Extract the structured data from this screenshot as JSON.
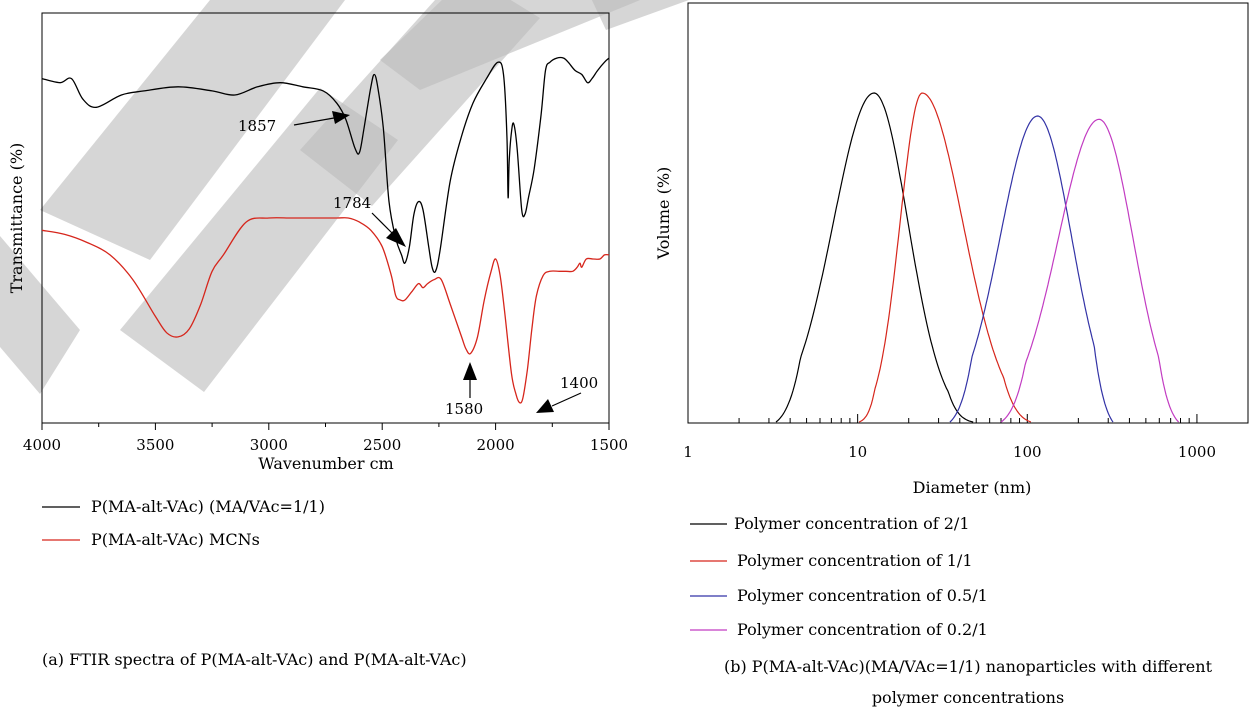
{
  "figure": {
    "watermark": "RETRACTED",
    "caption_a": "(a) FTIR spectra of P(MA-alt-VAc) and P(MA-alt-VAc)",
    "caption_b_line1": "(b) P(MA-alt-VAc)(MA/VAc=1/1) nanoparticles with different",
    "caption_b_line2": "polymer concentrations",
    "colors": {
      "black": "#000000",
      "red": "#d6261c",
      "blue": "#3333a6",
      "magenta": "#c23cc2"
    }
  },
  "chart_data": [
    {
      "type": "line",
      "xlabel": "Wavenumber cm",
      "ylabel": "Transmittance (%)",
      "xlim": [
        4000,
        1500
      ],
      "x_ticks": [
        "4000",
        "3500",
        "3000",
        "2500",
        "2000",
        "1500"
      ],
      "y_ticks_labeled": false,
      "legend": [
        "P(MA-alt-VAc) (MA/VAc=1/1)",
        "P(MA-alt-VAc) MCNs"
      ],
      "annotations": [
        "1857",
        "1784",
        "1580",
        "1400"
      ],
      "series": [
        {
          "name": "P(MA-alt-VAc) (MA/VAc=1/1)",
          "color": "#000000",
          "points": [
            [
              4000,
              0.84
            ],
            [
              3920,
              0.83
            ],
            [
              3870,
              0.84
            ],
            [
              3820,
              0.79
            ],
            [
              3760,
              0.77
            ],
            [
              3650,
              0.8
            ],
            [
              3550,
              0.81
            ],
            [
              3400,
              0.82
            ],
            [
              3250,
              0.81
            ],
            [
              3150,
              0.8
            ],
            [
              3050,
              0.82
            ],
            [
              2950,
              0.83
            ],
            [
              2850,
              0.82
            ],
            [
              2760,
              0.81
            ],
            [
              2700,
              0.78
            ],
            [
              2660,
              0.74
            ],
            [
              2620,
              0.67
            ],
            [
              2600,
              0.66
            ],
            [
              2580,
              0.72
            ],
            [
              2550,
              0.82
            ],
            [
              2535,
              0.85
            ],
            [
              2520,
              0.82
            ],
            [
              2495,
              0.72
            ],
            [
              2470,
              0.54
            ],
            [
              2440,
              0.45
            ],
            [
              2415,
              0.41
            ],
            [
              2400,
              0.39
            ],
            [
              2380,
              0.43
            ],
            [
              2360,
              0.51
            ],
            [
              2340,
              0.54
            ],
            [
              2320,
              0.52
            ],
            [
              2295,
              0.43
            ],
            [
              2280,
              0.38
            ],
            [
              2265,
              0.37
            ],
            [
              2245,
              0.42
            ],
            [
              2200,
              0.59
            ],
            [
              2150,
              0.7
            ],
            [
              2100,
              0.78
            ],
            [
              2040,
              0.84
            ],
            [
              1990,
              0.88
            ],
            [
              1965,
              0.85
            ],
            [
              1950,
              0.7
            ],
            [
              1945,
              0.55
            ],
            [
              1940,
              0.64
            ],
            [
              1930,
              0.71
            ],
            [
              1920,
              0.73
            ],
            [
              1905,
              0.67
            ],
            [
              1885,
              0.52
            ],
            [
              1870,
              0.51
            ],
            [
              1855,
              0.55
            ],
            [
              1830,
              0.62
            ],
            [
              1800,
              0.75
            ],
            [
              1780,
              0.86
            ],
            [
              1760,
              0.88
            ],
            [
              1730,
              0.89
            ],
            [
              1700,
              0.89
            ],
            [
              1680,
              0.88
            ],
            [
              1650,
              0.86
            ],
            [
              1620,
              0.85
            ],
            [
              1595,
              0.83
            ],
            [
              1575,
              0.84
            ],
            [
              1550,
              0.86
            ],
            [
              1520,
              0.88
            ],
            [
              1500,
              0.89
            ]
          ]
        },
        {
          "name": "P(MA-alt-VAc) MCNs",
          "color": "#d6261c",
          "points": [
            [
              4000,
              0.47
            ],
            [
              3900,
              0.46
            ],
            [
              3800,
              0.44
            ],
            [
              3700,
              0.41
            ],
            [
              3600,
              0.35
            ],
            [
              3500,
              0.26
            ],
            [
              3450,
              0.22
            ],
            [
              3400,
              0.21
            ],
            [
              3350,
              0.23
            ],
            [
              3300,
              0.29
            ],
            [
              3250,
              0.37
            ],
            [
              3200,
              0.41
            ],
            [
              3100,
              0.49
            ],
            [
              3000,
              0.5
            ],
            [
              2900,
              0.5
            ],
            [
              2800,
              0.5
            ],
            [
              2700,
              0.5
            ],
            [
              2650,
              0.5
            ],
            [
              2600,
              0.49
            ],
            [
              2550,
              0.47
            ],
            [
              2500,
              0.43
            ],
            [
              2460,
              0.36
            ],
            [
              2440,
              0.31
            ],
            [
              2420,
              0.3
            ],
            [
              2400,
              0.3
            ],
            [
              2370,
              0.32
            ],
            [
              2340,
              0.34
            ],
            [
              2320,
              0.33
            ],
            [
              2300,
              0.34
            ],
            [
              2270,
              0.35
            ],
            [
              2240,
              0.35
            ],
            [
              2200,
              0.29
            ],
            [
              2150,
              0.21
            ],
            [
              2130,
              0.18
            ],
            [
              2110,
              0.17
            ],
            [
              2080,
              0.21
            ],
            [
              2050,
              0.3
            ],
            [
              2020,
              0.37
            ],
            [
              2000,
              0.4
            ],
            [
              1980,
              0.36
            ],
            [
              1960,
              0.27
            ],
            [
              1930,
              0.12
            ],
            [
              1910,
              0.07
            ],
            [
              1895,
              0.05
            ],
            [
              1880,
              0.06
            ],
            [
              1860,
              0.13
            ],
            [
              1840,
              0.23
            ],
            [
              1820,
              0.31
            ],
            [
              1790,
              0.36
            ],
            [
              1760,
              0.37
            ],
            [
              1720,
              0.37
            ],
            [
              1690,
              0.37
            ],
            [
              1660,
              0.37
            ],
            [
              1640,
              0.38
            ],
            [
              1628,
              0.39
            ],
            [
              1620,
              0.38
            ],
            [
              1600,
              0.4
            ],
            [
              1570,
              0.4
            ],
            [
              1540,
              0.4
            ],
            [
              1520,
              0.41
            ],
            [
              1500,
              0.41
            ]
          ]
        }
      ]
    },
    {
      "type": "line",
      "xlabel": "Diameter (nm)",
      "ylabel": "Volume (%)",
      "x_scale": "log",
      "xlim": [
        1,
        2000
      ],
      "x_ticks": [
        "1",
        "10",
        "100",
        "1000"
      ],
      "y_ticks_labeled": false,
      "legend": [
        "Polymer concentration of 2/1",
        "Polymer concentration of 1/1",
        "Polymer concentration of 0.5/1",
        "Polymer concentration of 0.2/1"
      ],
      "series": [
        {
          "name": "Polymer concentration of 2/1",
          "color": "#000000",
          "peak": 12.5,
          "height": 1.0,
          "from": 3.3,
          "to": 48,
          "sigma_left": 0.24,
          "sigma_right": 0.2
        },
        {
          "name": "Polymer concentration of 1/1",
          "color": "#d6261c",
          "peak": 24,
          "height": 1.0,
          "from": 10.2,
          "to": 105,
          "sigma_left": 0.13,
          "sigma_right": 0.24
        },
        {
          "name": "Polymer concentration of 0.5/1",
          "color": "#3333a6",
          "peak": 115,
          "height": 0.93,
          "from": 35,
          "to": 320,
          "sigma_left": 0.22,
          "sigma_right": 0.2
        },
        {
          "name": "Polymer concentration of 0.2/1",
          "color": "#c23cc2",
          "peak": 265,
          "height": 0.92,
          "from": 70,
          "to": 780,
          "sigma_left": 0.24,
          "sigma_right": 0.2
        }
      ]
    }
  ]
}
